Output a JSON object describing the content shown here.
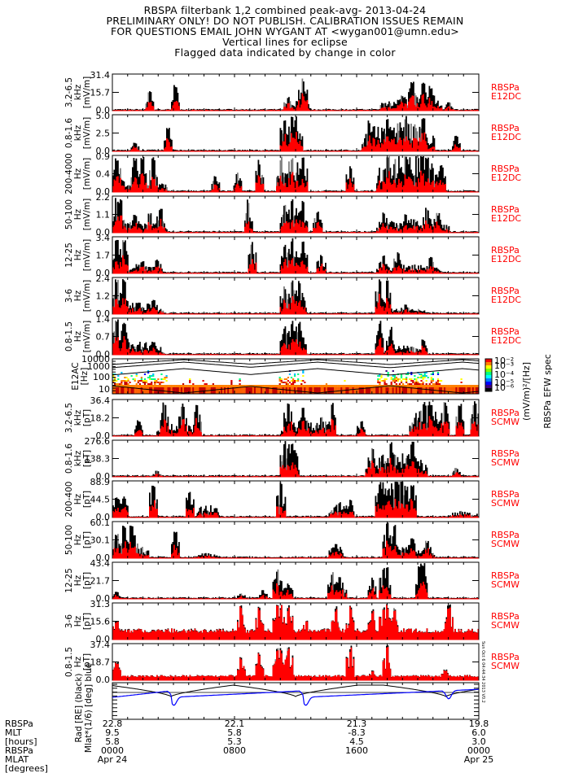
{
  "header": {
    "lines": [
      "RBSPA filterbank 1,2 combined peak-avg- 2013-04-24",
      "PRELIMINARY ONLY! DO NOT PUBLISH. CALIBRATION ISSUES REMAIN",
      "FOR QUESTIONS EMAIL JOHN WYGANT AT <wygan001@umn.edu>",
      "Vertical lines for eclipse",
      "Flagged data indicated by change in color"
    ]
  },
  "colors": {
    "peak": "#000000",
    "avg": "#ff0000",
    "flag": "#808080",
    "instrument_label": "#ff0000",
    "mlat": "#0000ff",
    "rad": "#000000"
  },
  "timestamp_vertical": "Sun Oct 6 04:44:34 2013 V0.2",
  "chart_data": [
    {
      "type": "area",
      "id": "efw-3.2-6.5kHz",
      "band": "3.2-6.5",
      "unit_line1": "kHz",
      "unit_line2": "[mV/m]",
      "yticks": [
        "31.4",
        "15.7",
        "0.0"
      ],
      "ylim": [
        0,
        31.4
      ],
      "instrument": [
        "RBSPa",
        "E12DC"
      ],
      "peaks": [
        [
          0.1,
          0.55
        ],
        [
          0.17,
          0.75
        ],
        [
          0.48,
          0.4
        ],
        [
          0.52,
          0.95
        ],
        [
          0.79,
          0.45
        ],
        [
          0.82,
          0.9
        ],
        [
          0.85,
          0.8
        ],
        [
          0.87,
          0.7
        ],
        [
          0.92,
          0.25
        ]
      ],
      "activity": [
        [
          0.47,
          0.54,
          0.25
        ],
        [
          0.73,
          0.9,
          0.35
        ]
      ]
    },
    {
      "type": "area",
      "id": "efw-0.8-1.6kHz",
      "band": "0.8-1.6",
      "unit_line1": "kHz",
      "unit_line2": "[mV/m]",
      "yticks": [
        "5.0",
        "2.5",
        "0.0"
      ],
      "ylim": [
        0,
        5.0
      ],
      "instrument": [
        "RBSPa",
        "E12DC"
      ],
      "peaks": [
        [
          0.06,
          0.25
        ],
        [
          0.15,
          0.7
        ],
        [
          0.47,
          1.0
        ],
        [
          0.49,
          1.0
        ],
        [
          0.5,
          1.0
        ],
        [
          0.7,
          0.9
        ],
        [
          0.75,
          1.0
        ],
        [
          0.8,
          1.0
        ],
        [
          0.85,
          1.0
        ],
        [
          0.94,
          0.45
        ]
      ],
      "activity": [
        [
          0.46,
          0.52,
          0.6
        ],
        [
          0.68,
          0.88,
          0.7
        ]
      ]
    },
    {
      "type": "area",
      "id": "efw-200-4000Hz",
      "band": "200-4000",
      "unit_line1": "Hz",
      "unit_line2": "[mV/m]",
      "yticks": [
        "0.9",
        "0.4",
        "0.0"
      ],
      "ylim": [
        0,
        0.9
      ],
      "instrument": [
        "RBSPa",
        "E12DC"
      ],
      "peaks": [
        [
          0.01,
          1.0
        ],
        [
          0.06,
          1.0
        ],
        [
          0.08,
          1.0
        ],
        [
          0.11,
          1.0
        ],
        [
          0.28,
          0.45
        ],
        [
          0.34,
          0.55
        ],
        [
          0.4,
          0.9
        ],
        [
          0.46,
          1.0
        ],
        [
          0.49,
          1.0
        ],
        [
          0.52,
          1.0
        ],
        [
          0.65,
          0.75
        ],
        [
          0.75,
          1.0
        ],
        [
          0.8,
          1.0
        ],
        [
          0.86,
          1.0
        ],
        [
          0.9,
          0.8
        ]
      ],
      "activity": [
        [
          0.0,
          0.15,
          0.35
        ],
        [
          0.45,
          0.53,
          0.7
        ],
        [
          0.72,
          0.9,
          0.95
        ]
      ]
    },
    {
      "type": "area",
      "id": "efw-50-100Hz",
      "band": "50-100",
      "unit_line1": "Hz",
      "unit_line2": "[mV/m]",
      "yticks": [
        "2.2",
        "1.1",
        "0.0"
      ],
      "ylim": [
        0,
        2.2
      ],
      "instrument": [
        "RBSPa",
        "E12DC"
      ],
      "peaks": [
        [
          0.01,
          1.0
        ],
        [
          0.02,
          0.95
        ],
        [
          0.06,
          0.5
        ],
        [
          0.1,
          0.55
        ],
        [
          0.13,
          0.7
        ],
        [
          0.37,
          0.95
        ],
        [
          0.47,
          0.85
        ],
        [
          0.49,
          1.0
        ],
        [
          0.52,
          0.9
        ],
        [
          0.56,
          0.65
        ],
        [
          0.74,
          0.6
        ],
        [
          0.8,
          0.55
        ],
        [
          0.86,
          0.7
        ],
        [
          0.89,
          0.55
        ]
      ],
      "activity": [
        [
          0.0,
          0.15,
          0.25
        ],
        [
          0.46,
          0.53,
          0.45
        ],
        [
          0.72,
          0.92,
          0.3
        ]
      ]
    },
    {
      "type": "area",
      "id": "efw-12-25Hz",
      "band": "12-25",
      "unit_line1": "Hz",
      "unit_line2": "[mV/m]",
      "yticks": [
        "3.4",
        "1.7",
        "0.0"
      ],
      "ylim": [
        0,
        3.4
      ],
      "instrument": [
        "RBSPa",
        "E12DC"
      ],
      "peaks": [
        [
          0.01,
          1.0
        ],
        [
          0.03,
          1.0
        ],
        [
          0.08,
          0.35
        ],
        [
          0.12,
          0.4
        ],
        [
          0.38,
          0.9
        ],
        [
          0.47,
          0.85
        ],
        [
          0.49,
          1.0
        ],
        [
          0.52,
          0.9
        ],
        [
          0.57,
          0.55
        ],
        [
          0.74,
          0.5
        ],
        [
          0.78,
          0.65
        ],
        [
          0.87,
          0.5
        ]
      ],
      "activity": [
        [
          0.0,
          0.14,
          0.2
        ],
        [
          0.46,
          0.53,
          0.5
        ],
        [
          0.72,
          0.9,
          0.2
        ]
      ]
    },
    {
      "type": "area",
      "id": "efw-3-6Hz",
      "band": "3-6",
      "unit_line1": "Hz",
      "unit_line2": "[mV/m]",
      "yticks": [
        "2.4",
        "1.2",
        "0.0"
      ],
      "ylim": [
        0,
        2.4
      ],
      "instrument": [
        "RBSPa",
        "E12DC"
      ],
      "peaks": [
        [
          0.01,
          1.0
        ],
        [
          0.03,
          1.0
        ],
        [
          0.07,
          0.35
        ],
        [
          0.11,
          0.4
        ],
        [
          0.47,
          0.8
        ],
        [
          0.49,
          1.0
        ],
        [
          0.51,
          1.0
        ],
        [
          0.73,
          1.0
        ],
        [
          0.75,
          1.0
        ],
        [
          0.8,
          0.3
        ]
      ],
      "activity": [
        [
          0.0,
          0.14,
          0.25
        ],
        [
          0.46,
          0.53,
          0.55
        ],
        [
          0.72,
          0.86,
          0.15
        ]
      ]
    },
    {
      "type": "area",
      "id": "efw-0.8-1.5Hz",
      "band": "0.8-1.5",
      "unit_line1": "Hz",
      "unit_line2": "[mV/m]",
      "yticks": [
        "1.4",
        "0.7",
        "0.0"
      ],
      "ylim": [
        0,
        1.4
      ],
      "instrument": [
        "RBSPa",
        "E12DC"
      ],
      "peaks": [
        [
          0.01,
          1.0
        ],
        [
          0.03,
          1.0
        ],
        [
          0.11,
          0.4
        ],
        [
          0.47,
          0.85
        ],
        [
          0.49,
          1.0
        ],
        [
          0.51,
          1.0
        ],
        [
          0.73,
          1.0
        ],
        [
          0.76,
          0.8
        ],
        [
          0.85,
          0.45
        ]
      ],
      "activity": [
        [
          0.0,
          0.14,
          0.3
        ],
        [
          0.46,
          0.53,
          0.7
        ],
        [
          0.72,
          0.86,
          0.2
        ]
      ]
    },
    {
      "type": "heatmap",
      "id": "e12ac-spectrogram",
      "label_line1": "E12AC",
      "label_line2": "[Hz]",
      "yticks": [
        "10000",
        "1000",
        "100",
        "10"
      ],
      "ylim_log10": [
        1,
        4
      ],
      "colorbar": {
        "ticks": [
          "10⁻²",
          "10⁻³",
          "10⁻⁴",
          "10⁻⁵",
          "10⁻⁶"
        ],
        "label": "(mV/m)²/[Hz]",
        "title": "RBSPa EFW spec"
      }
    },
    {
      "type": "area",
      "id": "scmw-3.2-6.5kHz",
      "band": "3.2-6.5",
      "unit_line1": "kHz",
      "unit_line2": "[pT]",
      "yticks": [
        "36.4",
        "18.2",
        "0.0"
      ],
      "ylim": [
        0,
        36.4
      ],
      "instrument": [
        "RBSPa",
        "SCMW"
      ],
      "peaks": [
        [
          0.07,
          0.45
        ],
        [
          0.14,
          0.95
        ],
        [
          0.19,
          0.95
        ],
        [
          0.23,
          1.0
        ],
        [
          0.48,
          1.0
        ],
        [
          0.52,
          0.85
        ],
        [
          0.57,
          0.6
        ],
        [
          0.6,
          0.95
        ],
        [
          0.68,
          0.45
        ],
        [
          0.87,
          1.0
        ],
        [
          0.91,
          0.95
        ],
        [
          0.95,
          0.95
        ],
        [
          0.99,
          1.0
        ]
      ],
      "activity": [
        [
          0.12,
          0.24,
          0.3
        ],
        [
          0.46,
          0.61,
          0.35
        ],
        [
          0.81,
          0.9,
          0.75
        ]
      ]
    },
    {
      "type": "area",
      "id": "scmw-0.8-1.6kHz",
      "band": "0.8-1.6",
      "unit_line1": "kHz",
      "unit_line2": "[pT]",
      "yticks": [
        "276.6",
        "138.3",
        "0.0"
      ],
      "ylim": [
        0,
        276.6
      ],
      "instrument": [
        "RBSPa",
        "SCMW"
      ],
      "peaks": [
        [
          0.12,
          0.18
        ],
        [
          0.47,
          1.0
        ],
        [
          0.49,
          1.0
        ],
        [
          0.71,
          0.85
        ],
        [
          0.76,
          1.0
        ],
        [
          0.82,
          1.0
        ],
        [
          0.94,
          0.25
        ]
      ],
      "activity": [
        [
          0.11,
          0.13,
          0.12
        ],
        [
          0.46,
          0.51,
          0.8
        ],
        [
          0.69,
          0.86,
          0.55
        ]
      ]
    },
    {
      "type": "area",
      "id": "scmw-200-400Hz",
      "band": "200-400",
      "unit_line1": "Hz",
      "unit_line2": "[pT]",
      "yticks": [
        "88.9",
        "44.5",
        "0.0"
      ],
      "ylim": [
        0,
        88.9
      ],
      "instrument": [
        "RBSPa",
        "SCMW"
      ],
      "peaks": [
        [
          0.01,
          0.6
        ],
        [
          0.03,
          0.6
        ],
        [
          0.11,
          1.0
        ],
        [
          0.21,
          0.8
        ],
        [
          0.24,
          0.3
        ],
        [
          0.46,
          1.0
        ],
        [
          0.62,
          0.45
        ],
        [
          0.65,
          0.5
        ],
        [
          0.73,
          1.0
        ],
        [
          0.78,
          1.0
        ],
        [
          0.82,
          1.0
        ]
      ],
      "activity": [
        [
          0.0,
          0.04,
          0.45
        ],
        [
          0.23,
          0.29,
          0.3
        ],
        [
          0.59,
          0.65,
          0.3
        ],
        [
          0.72,
          0.83,
          1.0
        ],
        [
          0.92,
          1.0,
          0.15
        ]
      ]
    },
    {
      "type": "area",
      "id": "scmw-50-100Hz",
      "band": "50-100",
      "unit_line1": "Hz",
      "unit_line2": "[pT]",
      "yticks": [
        "60.1",
        "30.1",
        "0.0"
      ],
      "ylim": [
        0,
        60.1
      ],
      "instrument": [
        "RBSPa",
        "SCMW"
      ],
      "peaks": [
        [
          0.01,
          0.7
        ],
        [
          0.03,
          0.95
        ],
        [
          0.05,
          1.0
        ],
        [
          0.17,
          0.75
        ],
        [
          0.61,
          0.45
        ],
        [
          0.75,
          1.0
        ],
        [
          0.77,
          0.95
        ],
        [
          0.82,
          0.6
        ],
        [
          0.86,
          0.5
        ]
      ],
      "activity": [
        [
          0.0,
          0.1,
          0.35
        ],
        [
          0.16,
          0.18,
          0.45
        ],
        [
          0.22,
          0.29,
          0.12
        ],
        [
          0.59,
          0.63,
          0.3
        ],
        [
          0.74,
          0.88,
          0.25
        ]
      ]
    },
    {
      "type": "area",
      "id": "scmw-12-25Hz",
      "band": "12-25",
      "unit_line1": "Hz",
      "unit_line2": "[pT]",
      "yticks": [
        "43.4",
        "21.7",
        "0.0"
      ],
      "ylim": [
        0,
        43.4
      ],
      "instrument": [
        "RBSPa",
        "SCMW"
      ],
      "peaks": [
        [
          0.01,
          0.2
        ],
        [
          0.35,
          0.15
        ],
        [
          0.41,
          0.25
        ],
        [
          0.45,
          0.85
        ],
        [
          0.46,
          0.5
        ],
        [
          0.48,
          0.45
        ],
        [
          0.6,
          0.75
        ],
        [
          0.62,
          0.65
        ],
        [
          0.71,
          0.6
        ],
        [
          0.74,
          0.9
        ],
        [
          0.75,
          0.95
        ],
        [
          0.84,
          1.0
        ],
        [
          0.85,
          1.0
        ]
      ],
      "activity": [
        [
          0.59,
          0.64,
          0.45
        ],
        [
          0.83,
          0.86,
          0.95
        ]
      ]
    },
    {
      "type": "area",
      "id": "scmw-3-6Hz",
      "band": "3-6",
      "unit_line1": "Hz",
      "unit_line2": "[pT]",
      "yticks": [
        "31.3",
        "15.6",
        "0.0"
      ],
      "ylim": [
        0,
        31.3
      ],
      "instrument": [
        "RBSPa",
        "SCMW"
      ],
      "peaks": [
        [
          0.01,
          0.55
        ],
        [
          0.35,
          1.0
        ],
        [
          0.4,
          1.0
        ],
        [
          0.45,
          1.0
        ],
        [
          0.46,
          1.0
        ],
        [
          0.48,
          1.0
        ],
        [
          0.53,
          0.6
        ],
        [
          0.61,
          1.0
        ],
        [
          0.65,
          1.0
        ],
        [
          0.71,
          0.85
        ],
        [
          0.74,
          1.0
        ],
        [
          0.75,
          1.0
        ],
        [
          0.77,
          0.95
        ],
        [
          0.92,
          1.0
        ]
      ],
      "base": 0.25
    },
    {
      "type": "area",
      "id": "scmw-0.8-1.5Hz",
      "band": "0.8-1.5",
      "unit_line1": "Hz",
      "unit_line2": "[pT]",
      "yticks": [
        "37.4",
        "18.7",
        "0.0"
      ],
      "ylim": [
        0,
        37.4
      ],
      "instrument": [
        "RBSPa",
        "SCMW"
      ],
      "peaks": [
        [
          0.01,
          0.55
        ],
        [
          0.35,
          0.65
        ],
        [
          0.4,
          0.8
        ],
        [
          0.45,
          1.0
        ],
        [
          0.46,
          0.9
        ],
        [
          0.48,
          1.0
        ],
        [
          0.65,
          1.0
        ],
        [
          0.71,
          0.3
        ],
        [
          0.75,
          1.0
        ],
        [
          0.91,
          0.3
        ]
      ],
      "base": 0.12
    },
    {
      "type": "line",
      "id": "orbit",
      "label_lines": [
        "Rad [RE] (black)",
        "Mlat*(1/6) [deg] blue"
      ],
      "series": [
        {
          "name": "Rad",
          "color": "#000000",
          "minima": [
            0.16,
            0.5,
            0.91
          ],
          "max": 1.0,
          "min": 0.3
        },
        {
          "name": "Mlat",
          "color": "#0000ff",
          "dips": [
            0.16,
            0.52,
            0.91
          ],
          "base_start": 0.55,
          "base_end": 0.8
        }
      ]
    }
  ],
  "x_axis": {
    "row_labels": [
      "RBSPa",
      "MLT",
      "[hours]",
      "RBSPa",
      "MLAT",
      "[degrees]"
    ],
    "ticks": [
      {
        "frac": 0.0,
        "values": [
          "22.8",
          "9.5",
          "5.8",
          "0000",
          "Apr 24"
        ]
      },
      {
        "frac": 0.3333,
        "values": [
          "22.1",
          "5.8",
          "5.3",
          "0800",
          ""
        ]
      },
      {
        "frac": 0.6667,
        "values": [
          "21.3",
          "-8.3",
          "4.5",
          "1600",
          ""
        ]
      },
      {
        "frac": 1.0,
        "values": [
          "19.8",
          "6.0",
          "3.0",
          "0000",
          "Apr 25"
        ]
      }
    ]
  }
}
